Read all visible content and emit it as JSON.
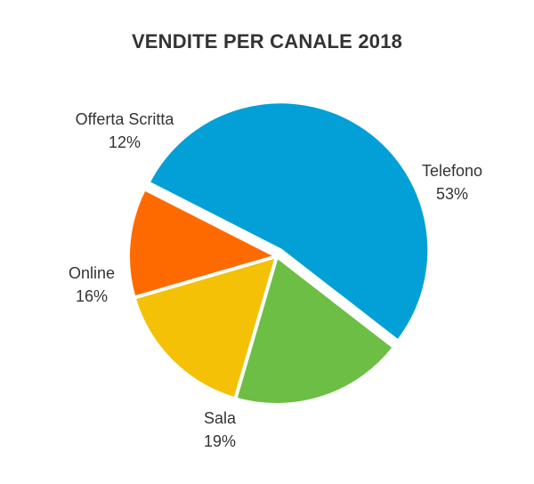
{
  "chart_data": {
    "type": "pie",
    "title": "VENDITE PER CANALE 2018",
    "slices": [
      {
        "label": "Telefono",
        "value": 53,
        "value_label": "53%",
        "color": "#02A0D6"
      },
      {
        "label": "Sala",
        "value": 19,
        "value_label": "19%",
        "color": "#6DBE45"
      },
      {
        "label": "Online",
        "value": 16,
        "value_label": "16%",
        "color": "#F4C106"
      },
      {
        "label": "Offerta Scritta",
        "value": 12,
        "value_label": "12%",
        "color": "#FF6A00"
      }
    ],
    "legend": "none",
    "labels": "outside"
  }
}
